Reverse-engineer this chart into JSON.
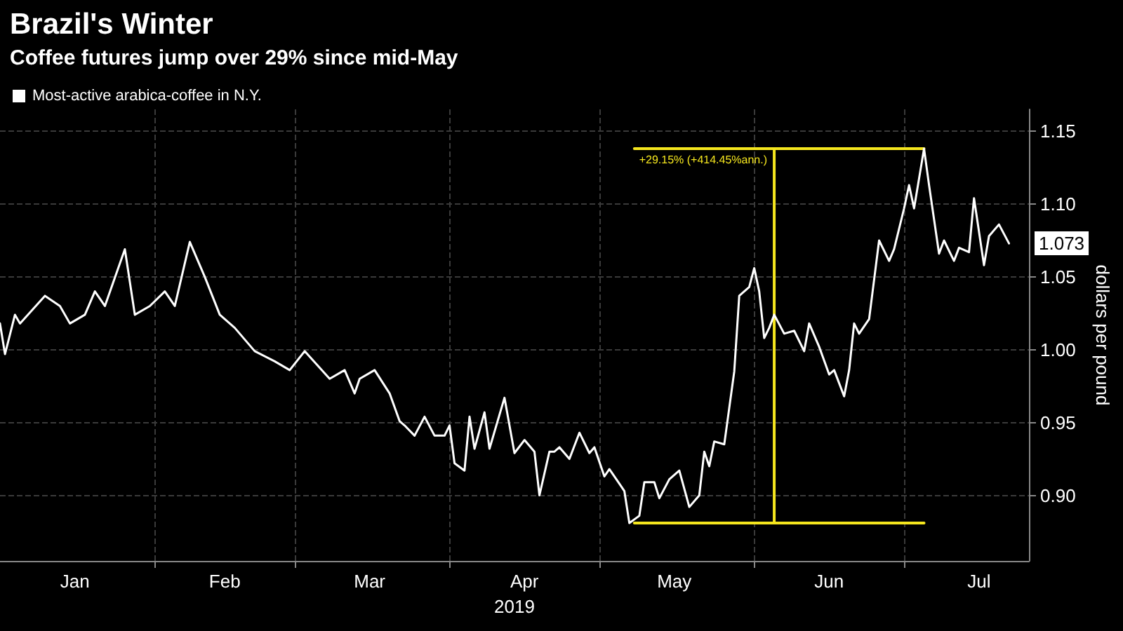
{
  "chart_data": {
    "type": "line",
    "title": "Brazil's Winter",
    "subtitle": "Coffee futures jump over 29% since mid-May",
    "xlabel": "2019",
    "ylabel": "dollars per pound",
    "xlim": [
      "2019-01-01",
      "2019-07-26"
    ],
    "ylim": [
      0.855,
      1.165
    ],
    "xticks": [
      {
        "value": "2019-01-16",
        "label": "Jan"
      },
      {
        "value": "2019-02-01",
        "label": null
      },
      {
        "value": "2019-02-15",
        "label": "Feb"
      },
      {
        "value": "2019-03-01",
        "label": null
      },
      {
        "value": "2019-03-16",
        "label": "Mar"
      },
      {
        "value": "2019-04-01",
        "label": null
      },
      {
        "value": "2019-04-16",
        "label": "Apr"
      },
      {
        "value": "2019-05-01",
        "label": null
      },
      {
        "value": "2019-05-16",
        "label": "May"
      },
      {
        "value": "2019-06-01",
        "label": null
      },
      {
        "value": "2019-06-16",
        "label": "Jun"
      },
      {
        "value": "2019-07-01",
        "label": null
      },
      {
        "value": "2019-07-16",
        "label": "Jul"
      }
    ],
    "yticks": [
      {
        "value": 0.9,
        "label": "0.90"
      },
      0.95,
      {
        "value": 1.0,
        "label": "1.00"
      },
      1.05,
      {
        "value": 1.1,
        "label": "1.10"
      },
      1.15
    ],
    "grid": true,
    "legend": "top left",
    "marker": "none",
    "series": [
      {
        "name": "Most-active arabica-coffee in N.Y.",
        "color": "#ffffff",
        "x": [
          "2019-01-01",
          "2019-01-02",
          "2019-01-04",
          "2019-01-05",
          "2019-01-10",
          "2019-01-13",
          "2019-01-15",
          "2019-01-18",
          "2019-01-20",
          "2019-01-22",
          "2019-01-26",
          "2019-01-28",
          "2019-01-31",
          "2019-02-03",
          "2019-02-05",
          "2019-02-08",
          "2019-02-11",
          "2019-02-14",
          "2019-02-17",
          "2019-02-21",
          "2019-02-25",
          "2019-02-28",
          "2019-03-03",
          "2019-03-08",
          "2019-03-11",
          "2019-03-13",
          "2019-03-14",
          "2019-03-17",
          "2019-03-20",
          "2019-03-22",
          "2019-03-23",
          "2019-03-25",
          "2019-03-27",
          "2019-03-29",
          "2019-03-31",
          "2019-04-01",
          "2019-04-02",
          "2019-04-04",
          "2019-04-05",
          "2019-04-06",
          "2019-04-08",
          "2019-04-09",
          "2019-04-12",
          "2019-04-14",
          "2019-04-16",
          "2019-04-18",
          "2019-04-19",
          "2019-04-21",
          "2019-04-22",
          "2019-04-23",
          "2019-04-25",
          "2019-04-27",
          "2019-04-29",
          "2019-04-30",
          "2019-05-02",
          "2019-05-03",
          "2019-05-05",
          "2019-05-06",
          "2019-05-07",
          "2019-05-09",
          "2019-05-10",
          "2019-05-12",
          "2019-05-13",
          "2019-05-15",
          "2019-05-17",
          "2019-05-19",
          "2019-05-21",
          "2019-05-22",
          "2019-05-23",
          "2019-05-24",
          "2019-05-26",
          "2019-05-27",
          "2019-05-28",
          "2019-05-29",
          "2019-05-31",
          "2019-06-01",
          "2019-06-02",
          "2019-06-03",
          "2019-06-04",
          "2019-06-05",
          "2019-06-07",
          "2019-06-09",
          "2019-06-11",
          "2019-06-12",
          "2019-06-14",
          "2019-06-16",
          "2019-06-17",
          "2019-06-19",
          "2019-06-20",
          "2019-06-21",
          "2019-06-22",
          "2019-06-24",
          "2019-06-26",
          "2019-06-28",
          "2019-06-29",
          "2019-07-01",
          "2019-07-02",
          "2019-07-03",
          "2019-07-05",
          "2019-07-06",
          "2019-07-08",
          "2019-07-09",
          "2019-07-11",
          "2019-07-12",
          "2019-07-14",
          "2019-07-15",
          "2019-07-17",
          "2019-07-18",
          "2019-07-20",
          "2019-07-22"
        ],
        "values": [
          1.018,
          0.997,
          1.024,
          1.018,
          1.037,
          1.03,
          1.018,
          1.024,
          1.04,
          1.03,
          1.069,
          1.024,
          1.03,
          1.04,
          1.03,
          1.074,
          1.05,
          1.024,
          1.015,
          0.999,
          0.992,
          0.986,
          0.999,
          0.98,
          0.986,
          0.97,
          0.98,
          0.986,
          0.97,
          0.951,
          0.948,
          0.941,
          0.954,
          0.941,
          0.941,
          0.948,
          0.922,
          0.917,
          0.954,
          0.932,
          0.957,
          0.932,
          0.967,
          0.929,
          0.938,
          0.93,
          0.9,
          0.93,
          0.93,
          0.933,
          0.925,
          0.943,
          0.929,
          0.933,
          0.913,
          0.918,
          0.908,
          0.903,
          0.881,
          0.886,
          0.909,
          0.909,
          0.898,
          0.911,
          0.917,
          0.892,
          0.9,
          0.93,
          0.92,
          0.937,
          0.935,
          0.96,
          0.985,
          1.037,
          1.043,
          1.056,
          1.04,
          1.008,
          1.015,
          1.024,
          1.011,
          1.013,
          0.999,
          1.018,
          1.002,
          0.983,
          0.986,
          0.968,
          0.986,
          1.018,
          1.011,
          1.021,
          1.075,
          1.061,
          1.069,
          1.097,
          1.113,
          1.097,
          1.138,
          1.113,
          1.066,
          1.075,
          1.061,
          1.07,
          1.067,
          1.104,
          1.058,
          1.078,
          1.086,
          1.073
        ]
      },
      {
        "color": "#f5e61e",
        "x": [
          "2019-05-08",
          "2019-07-05"
        ],
        "values": [
          1.138,
          1.138
        ]
      },
      {
        "color": "#f5e61e",
        "x": [
          "2019-05-08",
          "2019-07-05"
        ],
        "values": [
          0.881,
          0.881
        ]
      },
      {
        "color": "#f5e61e",
        "x": [
          "2019-06-05",
          "2019-06-05"
        ],
        "values": [
          0.881,
          1.138
        ]
      }
    ],
    "annotations": [
      "+29.15% (+414.45%ann.)",
      {
        "text": "1.073",
        "x": "2019-07-22",
        "y": 1.073
      }
    ]
  }
}
